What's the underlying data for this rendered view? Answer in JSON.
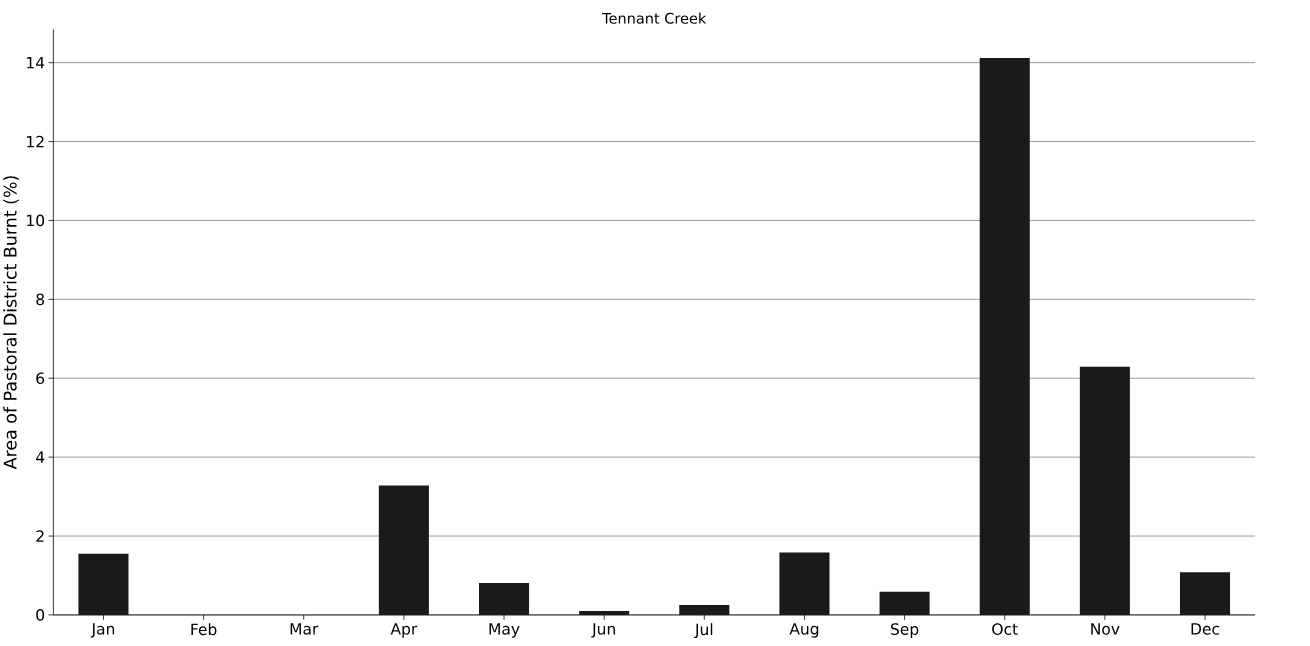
{
  "chart_data": {
    "type": "bar",
    "title": "Tennant Creek",
    "ylabel": "Area of Pastoral District Burnt (%)",
    "categories": [
      "Jan",
      "Feb",
      "Mar",
      "Apr",
      "May",
      "Jun",
      "Jul",
      "Aug",
      "Sep",
      "Oct",
      "Nov",
      "Dec"
    ],
    "values": [
      1.55,
      0,
      0,
      3.28,
      0.81,
      0.1,
      0.25,
      1.58,
      0.59,
      14.12,
      6.29,
      1.08
    ],
    "color": "#1a1a1a",
    "ylim": [
      0,
      14.85
    ],
    "yticks": [
      0,
      2,
      4,
      6,
      8,
      10,
      12,
      14
    ],
    "grid": "y"
  }
}
